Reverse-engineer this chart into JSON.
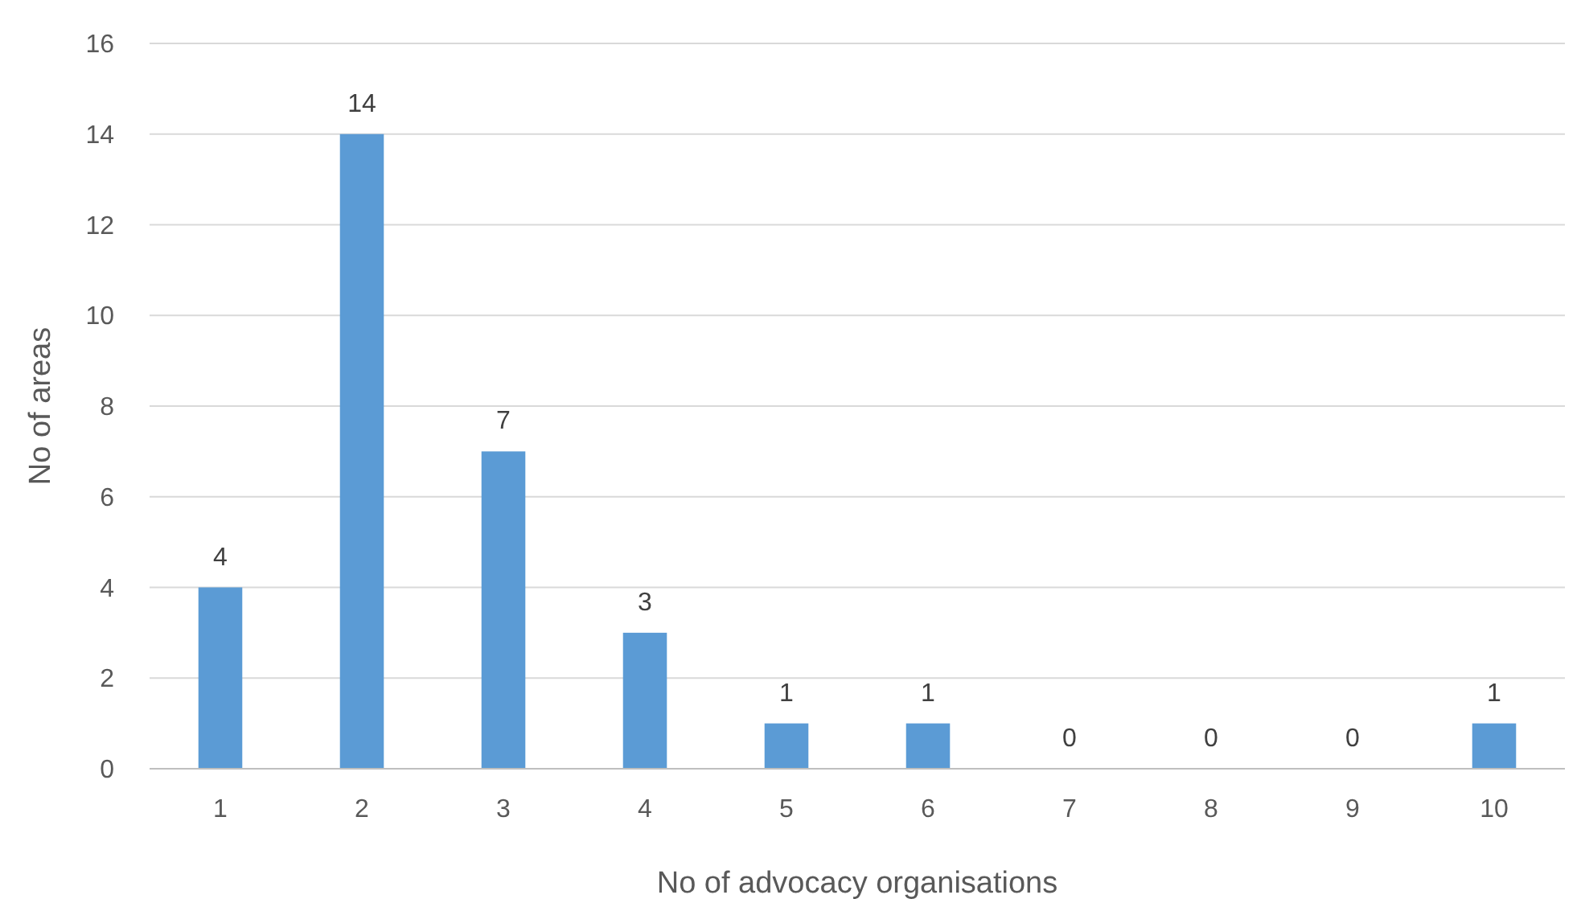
{
  "chart_data": {
    "type": "bar",
    "xlabel": "No of advocacy organisations",
    "ylabel": "No of areas",
    "categories": [
      "1",
      "2",
      "3",
      "4",
      "5",
      "6",
      "7",
      "8",
      "9",
      "10"
    ],
    "values": [
      4,
      14,
      7,
      3,
      1,
      1,
      0,
      0,
      0,
      1
    ],
    "color": "#5b9bd5",
    "ylim": [
      0,
      16
    ],
    "yticks": [
      0,
      2,
      4,
      6,
      8,
      10,
      12,
      14,
      16
    ],
    "grid": "y",
    "data_labels": true
  }
}
